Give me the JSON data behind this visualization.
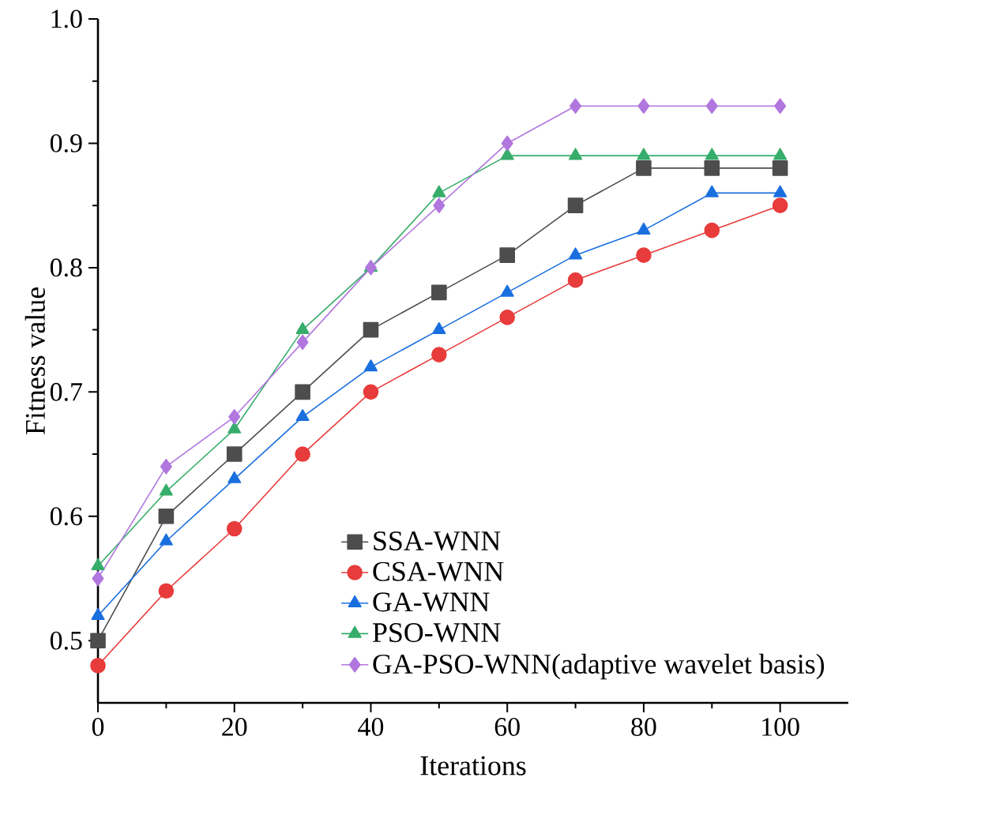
{
  "chart_data": {
    "type": "line",
    "xlabel": "Iterations",
    "ylabel": "Fitness value",
    "x": [
      0,
      10,
      20,
      30,
      40,
      50,
      60,
      70,
      80,
      90,
      100
    ],
    "xlim": [
      0,
      110
    ],
    "xticks": [
      0,
      20,
      40,
      60,
      80,
      100
    ],
    "ylim": [
      0.45,
      1.0
    ],
    "yticks": [
      0.5,
      0.6,
      0.7,
      0.8,
      0.9,
      {
        "value": 1.0,
        "label": "1.0"
      }
    ],
    "grid": false,
    "legend": "bottom right",
    "line_style": "solid",
    "series": [
      {
        "name": "SSA-WNN",
        "color": "#4d4d4d",
        "marker": "square",
        "values": [
          0.5,
          0.6,
          0.65,
          0.7,
          0.75,
          0.78,
          0.81,
          0.85,
          0.88,
          0.88,
          0.88
        ]
      },
      {
        "name": "CSA-WNN",
        "color": "#e83b3b",
        "marker": "circle",
        "values": [
          0.48,
          0.54,
          0.59,
          0.65,
          0.7,
          0.73,
          0.76,
          0.79,
          0.81,
          0.83,
          0.85
        ]
      },
      {
        "name": "GA-WNN",
        "color": "#1a6fdf",
        "marker": "triangle",
        "values": [
          0.52,
          0.58,
          0.63,
          0.68,
          0.72,
          0.75,
          0.78,
          0.81,
          0.83,
          0.86,
          0.86
        ]
      },
      {
        "name": "PSO-WNN",
        "color": "#37ad6b",
        "marker": "triangle-down",
        "values": [
          0.56,
          0.62,
          0.67,
          0.75,
          0.8,
          0.86,
          0.89,
          0.89,
          0.89,
          0.89,
          0.89
        ]
      },
      {
        "name": "GA-PSO-WNN(adaptive wavelet basis)",
        "color": "#b177de",
        "marker": "diamond",
        "values": [
          0.55,
          0.64,
          0.68,
          0.74,
          0.8,
          0.85,
          0.9,
          0.93,
          0.93,
          0.93,
          0.93
        ]
      }
    ]
  }
}
